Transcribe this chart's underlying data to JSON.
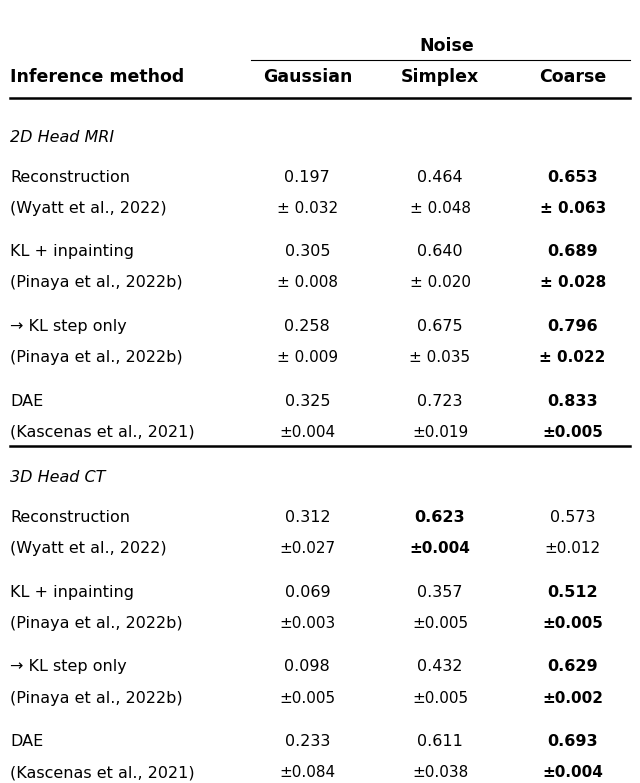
{
  "title": "Noise",
  "col_headers": [
    "Inference method",
    "Gaussian",
    "Simplex",
    "Coarse"
  ],
  "section1_label": "2D Head MRI",
  "section2_label": "3D Head CT",
  "rows": [
    {
      "section": "2D Head MRI",
      "method_line1": "Reconstruction",
      "method_line2": "(Wyatt et al., 2022)",
      "gaussian_val": "0.197",
      "gaussian_std": "± 0.032",
      "simplex_val": "0.464",
      "simplex_std": "± 0.048",
      "coarse_val": "0.653",
      "coarse_std": "± 0.063",
      "bold": "coarse"
    },
    {
      "section": "2D Head MRI",
      "method_line1": "KL + inpainting",
      "method_line2": "(Pinaya et al., 2022b)",
      "gaussian_val": "0.305",
      "gaussian_std": "± 0.008",
      "simplex_val": "0.640",
      "simplex_std": "± 0.020",
      "coarse_val": "0.689",
      "coarse_std": "± 0.028",
      "bold": "coarse"
    },
    {
      "section": "2D Head MRI",
      "method_line1": "→ KL step only",
      "method_line2": "(Pinaya et al., 2022b)",
      "gaussian_val": "0.258",
      "gaussian_std": "± 0.009",
      "simplex_val": "0.675",
      "simplex_std": "± 0.035",
      "coarse_val": "0.796",
      "coarse_std": "± 0.022",
      "bold": "coarse"
    },
    {
      "section": "2D Head MRI",
      "method_line1": "DAE",
      "method_line2": "(Kascenas et al., 2021)",
      "gaussian_val": "0.325",
      "gaussian_std": "±0.004",
      "simplex_val": "0.723",
      "simplex_std": "±0.019",
      "coarse_val": "0.833",
      "coarse_std": "±0.005",
      "bold": "coarse"
    },
    {
      "section": "3D Head CT",
      "method_line1": "Reconstruction",
      "method_line2": "(Wyatt et al., 2022)",
      "gaussian_val": "0.312",
      "gaussian_std": "±0.027",
      "simplex_val": "0.623",
      "simplex_std": "±0.004",
      "coarse_val": "0.573",
      "coarse_std": "±0.012",
      "bold": "simplex"
    },
    {
      "section": "3D Head CT",
      "method_line1": "KL + inpainting",
      "method_line2": "(Pinaya et al., 2022b)",
      "gaussian_val": "0.069",
      "gaussian_std": "±0.003",
      "simplex_val": "0.357",
      "simplex_std": "±0.005",
      "coarse_val": "0.512",
      "coarse_std": "±0.005",
      "bold": "coarse"
    },
    {
      "section": "3D Head CT",
      "method_line1": "→ KL step only",
      "method_line2": "(Pinaya et al., 2022b)",
      "gaussian_val": "0.098",
      "gaussian_std": "±0.005",
      "simplex_val": "0.432",
      "simplex_std": "±0.005",
      "coarse_val": "0.629",
      "coarse_std": "±0.002",
      "bold": "coarse"
    },
    {
      "section": "3D Head CT",
      "method_line1": "DAE",
      "method_line2": "(Kascenas et al., 2021)",
      "gaussian_val": "0.233",
      "gaussian_std": "±0.084",
      "simplex_val": "0.611",
      "simplex_std": "±0.038",
      "coarse_val": "0.693",
      "coarse_std": "±0.004",
      "bold": "coarse"
    }
  ],
  "bg_color": "#ffffff",
  "text_color": "#000000",
  "font_size": 11.5,
  "header_font_size": 12.5
}
